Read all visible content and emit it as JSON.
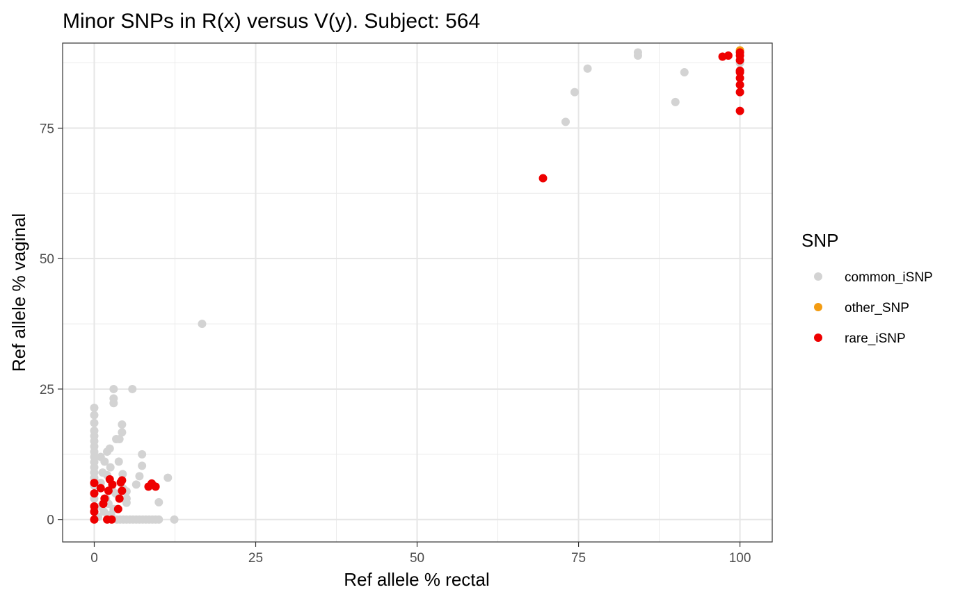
{
  "chart_data": {
    "type": "scatter",
    "title": "Minor SNPs in R(x) versus V(y). Subject: 564",
    "xlabel": "Ref allele % rectal",
    "ylabel": "Ref allele % vaginal",
    "xlim": [
      -4.9,
      105
    ],
    "ylim": [
      -4.3,
      91.3
    ],
    "x_ticks": [
      0,
      25,
      50,
      75,
      100
    ],
    "y_ticks": [
      0,
      25,
      50,
      75
    ],
    "x_tick_labels": [
      "0",
      "25",
      "50",
      "75",
      "100"
    ],
    "y_tick_labels": [
      "0",
      "25",
      "50",
      "75"
    ],
    "grid": true,
    "legend": {
      "title": "SNP",
      "position": "right",
      "entries": [
        {
          "label": "common_iSNP",
          "color": "#d3d3d3"
        },
        {
          "label": "other_SNP",
          "color": "#f39c12"
        },
        {
          "label": "rare_iSNP",
          "color": "#ee0000"
        }
      ]
    },
    "series": [
      {
        "name": "common_iSNP",
        "color": "#d3d3d3",
        "points": [
          [
            16.7,
            37.5
          ],
          [
            84.2,
            89.5
          ],
          [
            84.2,
            88.9
          ],
          [
            76.4,
            86.4
          ],
          [
            91.4,
            85.7
          ],
          [
            74.4,
            81.9
          ],
          [
            90.0,
            80.0
          ],
          [
            73.0,
            76.2
          ],
          [
            100,
            86.0
          ],
          [
            100,
            87.5
          ],
          [
            0,
            21.4
          ],
          [
            0,
            20.0
          ],
          [
            0,
            18.5
          ],
          [
            0,
            17.0
          ],
          [
            0,
            16.0
          ],
          [
            0,
            15.0
          ],
          [
            0,
            14.0
          ],
          [
            0,
            13.0
          ],
          [
            0,
            12.0
          ],
          [
            0,
            11.0
          ],
          [
            0,
            10.0
          ],
          [
            0,
            9.0
          ],
          [
            0,
            8.0
          ],
          [
            0,
            6.5
          ],
          [
            0,
            5.0
          ],
          [
            0,
            4.0
          ],
          [
            0,
            1.5
          ],
          [
            3.0,
            25.0
          ],
          [
            3.0,
            23.2
          ],
          [
            3.0,
            22.3
          ],
          [
            5.9,
            25.0
          ],
          [
            4.3,
            18.2
          ],
          [
            4.3,
            16.7
          ],
          [
            3.4,
            15.4
          ],
          [
            3.9,
            15.4
          ],
          [
            7.4,
            12.5
          ],
          [
            11.4,
            8.0
          ],
          [
            7.4,
            10.3
          ],
          [
            7.0,
            8.3
          ],
          [
            6.5,
            6.7
          ],
          [
            5.0,
            5.4
          ],
          [
            5.0,
            4.0
          ],
          [
            4.4,
            8.7
          ],
          [
            10.0,
            3.3
          ],
          [
            3.8,
            11.1
          ],
          [
            2.4,
            13.6
          ],
          [
            2.0,
            13.0
          ],
          [
            1.0,
            12.0
          ],
          [
            1.6,
            11.1
          ],
          [
            2.5,
            10.0
          ],
          [
            1.3,
            9.0
          ],
          [
            2.0,
            8.5
          ],
          [
            1.0,
            7.0
          ],
          [
            2.7,
            6.0
          ],
          [
            3.3,
            5.0
          ],
          [
            1.8,
            4.0
          ],
          [
            2.2,
            3.0
          ],
          [
            4.5,
            5.9
          ],
          [
            5.0,
            3.2
          ],
          [
            1.0,
            2.5
          ],
          [
            3.0,
            2.0
          ],
          [
            1.5,
            1.5
          ],
          [
            2.6,
            1.0
          ],
          [
            2.2,
            0.5
          ],
          [
            0.6,
            0.5
          ],
          [
            3.5,
            0
          ],
          [
            4.0,
            0
          ],
          [
            4.5,
            0
          ],
          [
            5.0,
            0
          ],
          [
            5.5,
            0
          ],
          [
            6.0,
            0
          ],
          [
            6.5,
            0
          ],
          [
            7.0,
            0
          ],
          [
            7.5,
            0
          ],
          [
            8.0,
            0
          ],
          [
            8.5,
            0
          ],
          [
            9.0,
            0
          ],
          [
            9.5,
            0
          ],
          [
            10.0,
            0
          ],
          [
            12.4,
            0
          ]
        ]
      },
      {
        "name": "other_SNP",
        "color": "#f39c12",
        "points": [
          [
            100,
            89.9
          ]
        ]
      },
      {
        "name": "rare_iSNP",
        "color": "#ee0000",
        "points": [
          [
            69.5,
            65.4
          ],
          [
            97.3,
            88.7
          ],
          [
            98.2,
            88.9
          ],
          [
            100,
            89.5
          ],
          [
            100,
            88.9
          ],
          [
            100,
            88.0
          ],
          [
            100,
            86.0
          ],
          [
            100,
            85.7
          ],
          [
            100,
            84.6
          ],
          [
            100,
            83.3
          ],
          [
            100,
            81.9
          ],
          [
            100,
            78.3
          ],
          [
            0,
            0
          ],
          [
            0,
            1.5
          ],
          [
            0,
            2.5
          ],
          [
            0,
            5.0
          ],
          [
            0,
            7.0
          ],
          [
            2.0,
            0
          ],
          [
            2.7,
            0
          ],
          [
            1.6,
            4.0
          ],
          [
            2.2,
            5.5
          ],
          [
            2.8,
            6.7
          ],
          [
            3.9,
            4.0
          ],
          [
            4.1,
            7.1
          ],
          [
            4.3,
            7.5
          ],
          [
            3.7,
            2.0
          ],
          [
            4.3,
            5.5
          ],
          [
            2.4,
            7.7
          ],
          [
            8.4,
            6.3
          ],
          [
            8.9,
            6.9
          ],
          [
            9.5,
            6.3
          ],
          [
            1.0,
            6.0
          ],
          [
            1.4,
            3.0
          ]
        ]
      }
    ]
  }
}
